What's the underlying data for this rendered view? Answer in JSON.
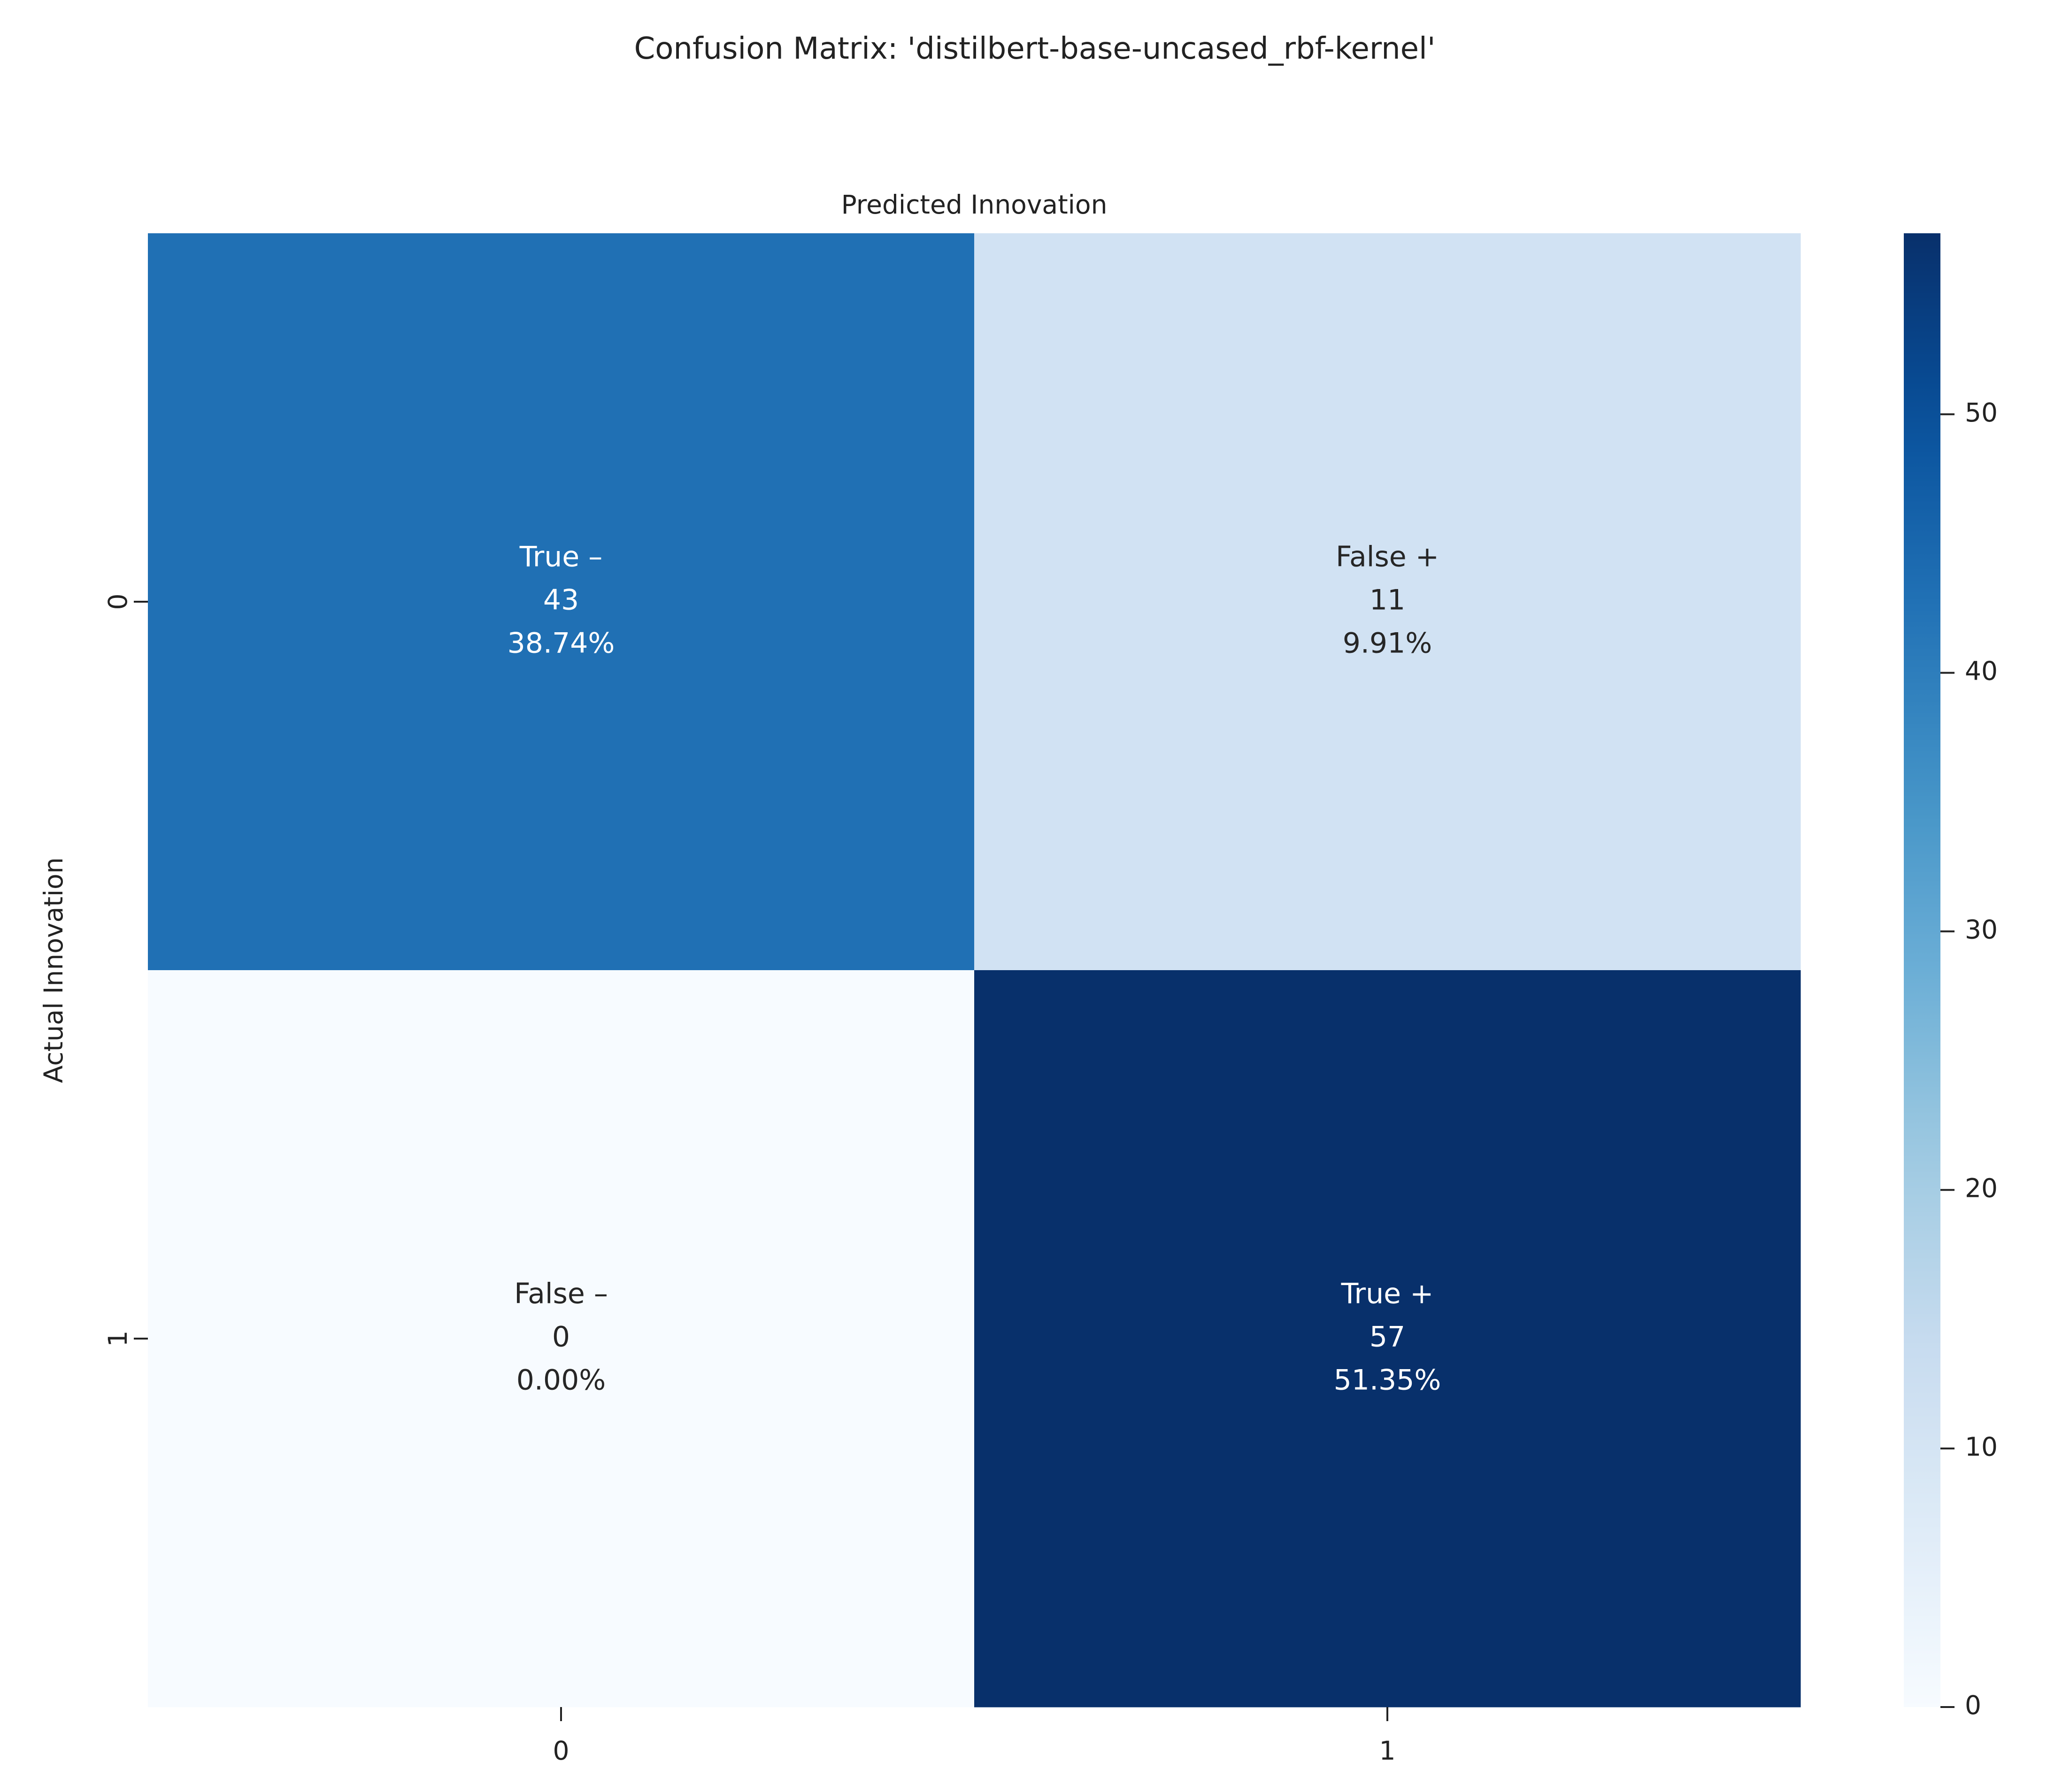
{
  "chart_data": {
    "type": "heatmap",
    "title": "Confusion Matrix: 'distilbert-base-uncased_rbf-kernel'",
    "xlabel": "Predicted Innovation",
    "ylabel": "Actual Innovation",
    "x_categories": [
      "0",
      "1"
    ],
    "y_categories": [
      "0",
      "1"
    ],
    "values": [
      [
        43,
        11
      ],
      [
        0,
        57
      ]
    ],
    "cell_labels": [
      [
        {
          "name": "True –",
          "count": "43",
          "percent": "38.74%"
        },
        {
          "name": "False +",
          "count": "11",
          "percent": "9.91%"
        }
      ],
      [
        {
          "name": "False –",
          "count": "0",
          "percent": "0.00%"
        },
        {
          "name": "True +",
          "count": "57",
          "percent": "51.35%"
        }
      ]
    ],
    "colorbar": {
      "min": 0,
      "max": 57,
      "ticks": [
        0,
        10,
        20,
        30,
        40,
        50
      ],
      "tick_labels": [
        "0",
        "10",
        "20",
        "30",
        "40",
        "50"
      ],
      "colormap": "Blues"
    },
    "grid": false,
    "legend": "colorbar-right"
  }
}
